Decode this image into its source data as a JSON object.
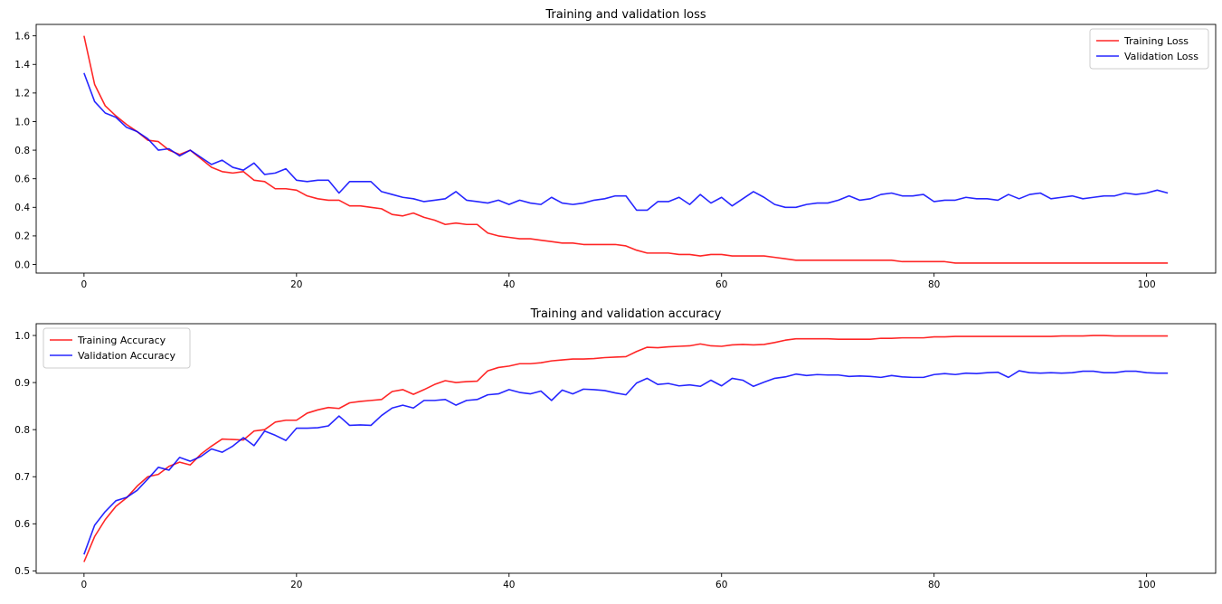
{
  "chart_data": [
    {
      "type": "line",
      "title": "Training and validation loss",
      "xlabel": "",
      "ylabel": "",
      "xlim": [
        -4.5,
        106.5
      ],
      "ylim": [
        -0.06,
        1.68
      ],
      "xticks": [
        0,
        20,
        40,
        60,
        80,
        100
      ],
      "yticks": [
        0.0,
        0.2,
        0.4,
        0.6,
        0.8,
        1.0,
        1.2,
        1.4,
        1.6
      ],
      "ytick_decimals": 1,
      "grid": false,
      "legend": "top-right",
      "colors": {
        "Training Loss": "#ff0000",
        "Validation Loss": "#0000ff"
      },
      "series": [
        {
          "name": "Training Loss",
          "color": "#ff0000",
          "values": [
            1.6,
            1.26,
            1.11,
            1.04,
            0.98,
            0.93,
            0.87,
            0.86,
            0.8,
            0.77,
            0.8,
            0.74,
            0.68,
            0.65,
            0.64,
            0.65,
            0.59,
            0.58,
            0.53,
            0.53,
            0.52,
            0.48,
            0.46,
            0.45,
            0.45,
            0.41,
            0.41,
            0.4,
            0.39,
            0.35,
            0.34,
            0.36,
            0.33,
            0.31,
            0.28,
            0.29,
            0.28,
            0.28,
            0.22,
            0.2,
            0.19,
            0.18,
            0.18,
            0.17,
            0.16,
            0.15,
            0.15,
            0.14,
            0.14,
            0.14,
            0.14,
            0.13,
            0.1,
            0.08,
            0.08,
            0.08,
            0.07,
            0.07,
            0.06,
            0.07,
            0.07,
            0.06,
            0.06,
            0.06,
            0.06,
            0.05,
            0.04,
            0.03,
            0.03,
            0.03,
            0.03,
            0.03,
            0.03,
            0.03,
            0.03,
            0.03,
            0.03,
            0.02,
            0.02,
            0.02,
            0.02,
            0.02,
            0.01,
            0.01,
            0.01,
            0.01,
            0.01,
            0.01,
            0.01,
            0.01,
            0.01,
            0.01,
            0.01,
            0.01,
            0.01,
            0.01,
            0.01,
            0.01,
            0.01,
            0.01,
            0.01,
            0.01,
            0.01
          ]
        },
        {
          "name": "Validation Loss",
          "color": "#0000ff",
          "values": [
            1.34,
            1.14,
            1.06,
            1.03,
            0.96,
            0.93,
            0.88,
            0.8,
            0.81,
            0.76,
            0.8,
            0.75,
            0.7,
            0.73,
            0.68,
            0.66,
            0.71,
            0.63,
            0.64,
            0.67,
            0.59,
            0.58,
            0.59,
            0.59,
            0.5,
            0.58,
            0.58,
            0.58,
            0.51,
            0.49,
            0.47,
            0.46,
            0.44,
            0.45,
            0.46,
            0.51,
            0.45,
            0.44,
            0.43,
            0.45,
            0.42,
            0.45,
            0.43,
            0.42,
            0.47,
            0.43,
            0.42,
            0.43,
            0.45,
            0.46,
            0.48,
            0.48,
            0.38,
            0.38,
            0.44,
            0.44,
            0.47,
            0.42,
            0.49,
            0.43,
            0.47,
            0.41,
            0.46,
            0.51,
            0.47,
            0.42,
            0.4,
            0.4,
            0.42,
            0.43,
            0.43,
            0.45,
            0.48,
            0.45,
            0.46,
            0.49,
            0.5,
            0.48,
            0.48,
            0.49,
            0.44,
            0.45,
            0.45,
            0.47,
            0.46,
            0.46,
            0.45,
            0.49,
            0.46,
            0.49,
            0.5,
            0.46,
            0.47,
            0.48,
            0.46,
            0.47,
            0.48,
            0.48,
            0.5,
            0.49,
            0.5,
            0.52,
            0.5
          ]
        }
      ]
    },
    {
      "type": "line",
      "title": "Training and validation accuracy",
      "xlabel": "",
      "ylabel": "",
      "xlim": [
        -4.5,
        106.5
      ],
      "ylim": [
        0.495,
        1.025
      ],
      "xticks": [
        0,
        20,
        40,
        60,
        80,
        100
      ],
      "yticks": [
        0.5,
        0.6,
        0.7,
        0.8,
        0.9,
        1.0
      ],
      "ytick_decimals": 1,
      "grid": false,
      "legend": "top-left",
      "colors": {
        "Training Accuracy": "#ff0000",
        "Validation Accuracy": "#0000ff"
      },
      "series": [
        {
          "name": "Training Accuracy",
          "color": "#ff0000",
          "values": [
            0.519,
            0.573,
            0.609,
            0.637,
            0.655,
            0.68,
            0.7,
            0.705,
            0.722,
            0.731,
            0.725,
            0.748,
            0.765,
            0.78,
            0.779,
            0.778,
            0.797,
            0.8,
            0.816,
            0.82,
            0.82,
            0.835,
            0.842,
            0.847,
            0.845,
            0.857,
            0.86,
            0.862,
            0.864,
            0.881,
            0.885,
            0.875,
            0.885,
            0.896,
            0.904,
            0.9,
            0.902,
            0.903,
            0.925,
            0.932,
            0.935,
            0.94,
            0.94,
            0.942,
            0.946,
            0.948,
            0.95,
            0.95,
            0.951,
            0.953,
            0.954,
            0.955,
            0.966,
            0.975,
            0.974,
            0.976,
            0.977,
            0.978,
            0.982,
            0.978,
            0.977,
            0.98,
            0.981,
            0.98,
            0.981,
            0.985,
            0.99,
            0.993,
            0.993,
            0.993,
            0.993,
            0.992,
            0.992,
            0.992,
            0.992,
            0.994,
            0.994,
            0.995,
            0.995,
            0.995,
            0.997,
            0.997,
            0.998,
            0.998,
            0.998,
            0.998,
            0.998,
            0.998,
            0.998,
            0.998,
            0.998,
            0.998,
            0.999,
            0.999,
            0.999,
            1.0,
            1.0,
            0.999,
            0.999,
            0.999,
            0.999,
            0.999,
            0.999
          ]
        },
        {
          "name": "Validation Accuracy",
          "color": "#0000ff",
          "values": [
            0.535,
            0.597,
            0.626,
            0.649,
            0.656,
            0.671,
            0.695,
            0.72,
            0.714,
            0.741,
            0.733,
            0.743,
            0.759,
            0.752,
            0.765,
            0.783,
            0.766,
            0.797,
            0.788,
            0.777,
            0.803,
            0.803,
            0.804,
            0.808,
            0.829,
            0.809,
            0.81,
            0.809,
            0.83,
            0.846,
            0.852,
            0.846,
            0.862,
            0.862,
            0.864,
            0.852,
            0.862,
            0.864,
            0.874,
            0.876,
            0.885,
            0.879,
            0.876,
            0.882,
            0.862,
            0.884,
            0.876,
            0.886,
            0.885,
            0.883,
            0.878,
            0.874,
            0.899,
            0.909,
            0.896,
            0.898,
            0.893,
            0.895,
            0.892,
            0.905,
            0.893,
            0.909,
            0.905,
            0.892,
            0.901,
            0.909,
            0.912,
            0.918,
            0.915,
            0.917,
            0.916,
            0.916,
            0.913,
            0.914,
            0.913,
            0.911,
            0.915,
            0.912,
            0.911,
            0.911,
            0.917,
            0.919,
            0.917,
            0.92,
            0.919,
            0.921,
            0.922,
            0.911,
            0.925,
            0.921,
            0.92,
            0.921,
            0.92,
            0.921,
            0.924,
            0.924,
            0.921,
            0.921,
            0.924,
            0.924,
            0.921,
            0.92,
            0.92
          ]
        }
      ]
    }
  ]
}
